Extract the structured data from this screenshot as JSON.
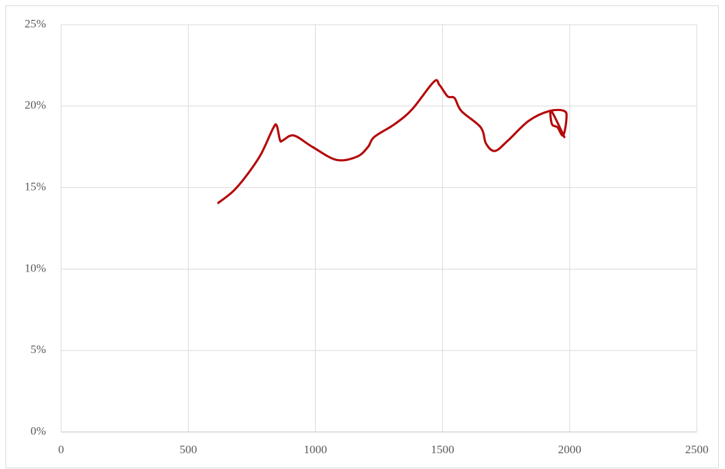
{
  "chart_data": {
    "type": "line",
    "x": [
      618,
      678,
      732,
      786,
      834,
      848,
      861,
      872,
      915,
      988,
      1083,
      1164,
      1207,
      1231,
      1312,
      1380,
      1466,
      1488,
      1520,
      1547,
      1574,
      1650,
      1671,
      1706,
      1758,
      1839,
      1920,
      1979,
      1987,
      1974,
      1952,
      1930,
      1928,
      1979
    ],
    "series": [
      {
        "color": "#b50a0a",
        "values": [
          14.06,
          14.8,
          15.8,
          17.05,
          18.65,
          18.8,
          17.9,
          17.9,
          18.2,
          17.5,
          16.7,
          16.9,
          17.5,
          18.1,
          18.9,
          19.8,
          21.5,
          21.3,
          20.6,
          20.5,
          19.7,
          18.7,
          17.7,
          17.25,
          17.9,
          19.1,
          19.7,
          19.7,
          19.2,
          18.2,
          18.7,
          18.9,
          19.7,
          18.1
        ]
      }
    ],
    "xlim": [
      0,
      2500
    ],
    "xticks": [
      0,
      500,
      1000,
      1500,
      2000,
      2500
    ],
    "ylim": [
      0,
      25
    ],
    "yticks": [
      {
        "value": 0,
        "label": "0%"
      },
      {
        "value": 5,
        "label": "5%"
      },
      {
        "value": 10,
        "label": "10%"
      },
      {
        "value": 15,
        "label": "15%"
      },
      {
        "value": 20,
        "label": "20%"
      },
      {
        "value": 25,
        "label": "25%"
      }
    ],
    "grid": true
  }
}
